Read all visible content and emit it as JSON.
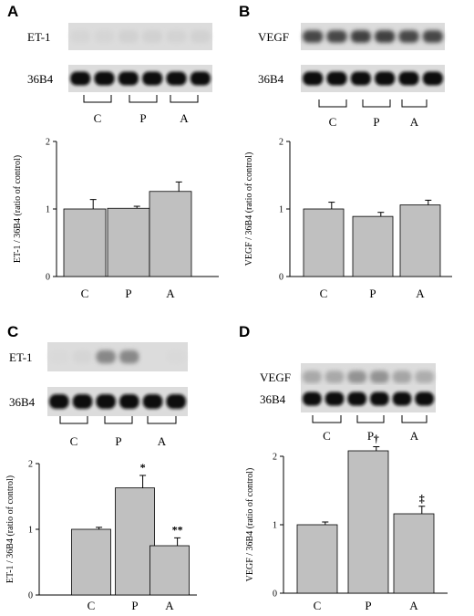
{
  "panels": [
    {
      "label": "A",
      "blots": [
        "ET-1",
        "36B4"
      ],
      "groups": [
        "C",
        "P",
        "A"
      ],
      "ylabel": "ET-1 / 36B4 (ratio of control)",
      "yticks": [
        "0",
        "1",
        "2"
      ],
      "categories": [
        "C",
        "P",
        "A"
      ],
      "markers": [
        "",
        "",
        ""
      ]
    },
    {
      "label": "B",
      "blots": [
        "VEGF",
        "36B4"
      ],
      "groups": [
        "C",
        "P",
        "A"
      ],
      "ylabel": "VEGF / 36B4 (ratio of control)",
      "yticks": [
        "0",
        "1",
        "2"
      ],
      "categories": [
        "C",
        "P",
        "A"
      ],
      "markers": [
        "",
        "",
        ""
      ]
    },
    {
      "label": "C",
      "blots": [
        "ET-1",
        "36B4"
      ],
      "groups": [
        "C",
        "P",
        "A"
      ],
      "ylabel": "ET-1 / 36B4 (ratio of control)",
      "yticks": [
        "0",
        "1",
        "2"
      ],
      "categories": [
        "C",
        "P",
        "A"
      ],
      "markers": [
        "",
        "*",
        "**"
      ]
    },
    {
      "label": "D",
      "blots": [
        "VEGF",
        "36B4"
      ],
      "groups": [
        "C",
        "P",
        "A"
      ],
      "ylabel": "VEGF / 36B4 (ratio of control)",
      "yticks": [
        "0",
        "1",
        "2"
      ],
      "categories": [
        "C",
        "P",
        "A"
      ],
      "markers": [
        "",
        "†",
        "‡"
      ]
    }
  ],
  "chart_data": [
    {
      "type": "bar",
      "categories": [
        "C",
        "P",
        "A"
      ],
      "values": [
        1.0,
        1.01,
        1.26
      ],
      "errors": [
        0.14,
        0.03,
        0.14
      ],
      "ylabel": "ET-1 / 36B4 (ratio of control)",
      "ylim": [
        0,
        2
      ]
    },
    {
      "type": "bar",
      "categories": [
        "C",
        "P",
        "A"
      ],
      "values": [
        1.0,
        0.89,
        1.06
      ],
      "errors": [
        0.1,
        0.06,
        0.07
      ],
      "ylabel": "VEGF / 36B4 (ratio of control)",
      "ylim": [
        0,
        2
      ]
    },
    {
      "type": "bar",
      "categories": [
        "C",
        "P",
        "A"
      ],
      "values": [
        1.0,
        1.63,
        0.75
      ],
      "errors": [
        0.03,
        0.19,
        0.12
      ],
      "ylabel": "ET-1 / 36B4 (ratio of control)",
      "ylim": [
        0,
        2
      ]
    },
    {
      "type": "bar",
      "categories": [
        "C",
        "P",
        "A"
      ],
      "values": [
        1.0,
        2.08,
        1.16
      ],
      "errors": [
        0.04,
        0.06,
        0.11
      ],
      "ylabel": "VEGF / 36B4 (ratio of control)",
      "ylim": [
        0,
        2
      ]
    }
  ],
  "colors": {
    "bar": "#c0c0c0",
    "blot_bg": "#dcdcdc",
    "band_dark": "#151515"
  }
}
